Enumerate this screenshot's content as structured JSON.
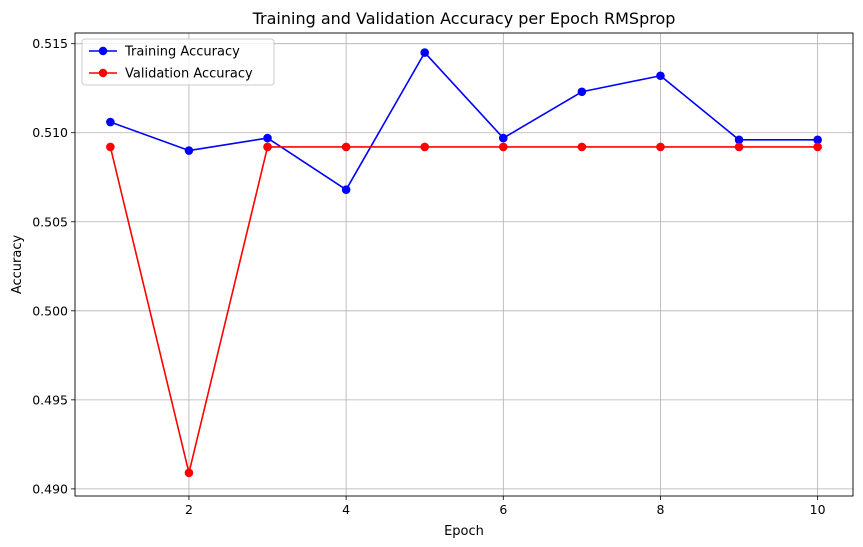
{
  "chart_data": {
    "type": "line",
    "title": "Training and Validation Accuracy per Epoch RMSprop",
    "xlabel": "Epoch",
    "ylabel": "Accuracy",
    "x": [
      1,
      2,
      3,
      4,
      5,
      6,
      7,
      8,
      9,
      10
    ],
    "xlim": [
      0.55,
      10.45
    ],
    "ylim": [
      0.4896,
      0.5156
    ],
    "xticks": [
      2,
      4,
      6,
      8,
      10
    ],
    "yticks": [
      0.49,
      0.495,
      0.5,
      0.505,
      0.51,
      0.515
    ],
    "xtick_labels": [
      "2",
      "4",
      "6",
      "8",
      "10"
    ],
    "ytick_labels": [
      "0.490",
      "0.495",
      "0.500",
      "0.505",
      "0.510",
      "0.515"
    ],
    "grid": true,
    "legend_position": "upper-left",
    "series": [
      {
        "name": "Training Accuracy",
        "color": "#0000ff",
        "marker": "circle",
        "values": [
          0.5106,
          0.509,
          0.5097,
          0.5068,
          0.5145,
          0.5097,
          0.5123,
          0.5132,
          0.5096,
          0.5096
        ]
      },
      {
        "name": "Validation Accuracy",
        "color": "#ff0000",
        "marker": "circle",
        "values": [
          0.5092,
          0.4909,
          0.5092,
          0.5092,
          0.5092,
          0.5092,
          0.5092,
          0.5092,
          0.5092,
          0.5092
        ]
      }
    ]
  }
}
